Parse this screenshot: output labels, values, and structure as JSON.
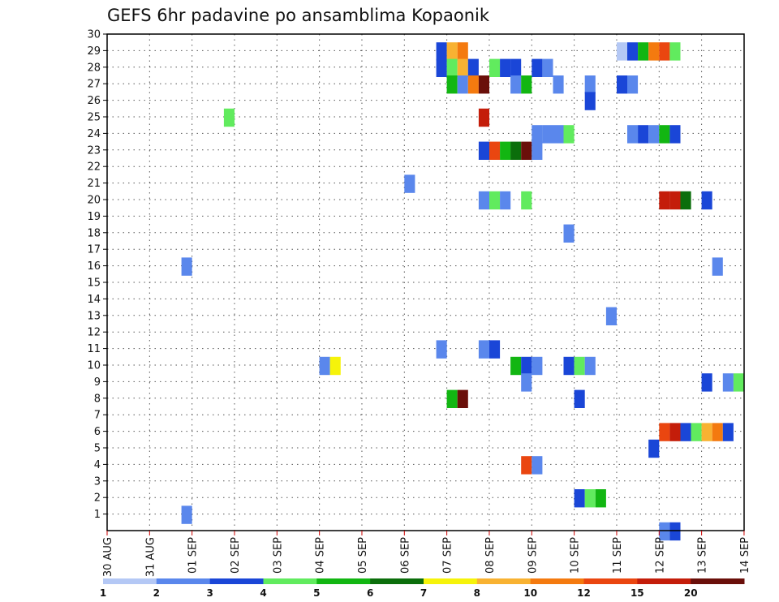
{
  "chart_data": {
    "type": "heatmap",
    "title": "GEFS 6hr padavine po ansamblima Kopaonik",
    "x_categories": [
      "30 AUG",
      "31 AUG",
      "01 SEP",
      "02 SEP",
      "03 SEP",
      "04 SEP",
      "05 SEP",
      "06 SEP",
      "07 SEP",
      "08 SEP",
      "09 SEP",
      "10 SEP",
      "11 SEP",
      "12 SEP",
      "13 SEP",
      "14 SEP"
    ],
    "x_step": "6hr",
    "y_ticks": [
      1,
      2,
      3,
      4,
      5,
      6,
      7,
      8,
      9,
      10,
      11,
      12,
      13,
      14,
      15,
      16,
      17,
      18,
      19,
      20,
      21,
      22,
      23,
      24,
      25,
      26,
      27,
      28,
      29,
      30
    ],
    "ylim": [
      0,
      30
    ],
    "grid": true,
    "legend_placement": "bottom",
    "colorbar": {
      "labels": [
        "1",
        "2",
        "3",
        "4",
        "5",
        "6",
        "7",
        "8",
        "10",
        "12",
        "15",
        "20"
      ],
      "colors": [
        "#b4c8f5",
        "#5a87ec",
        "#1a46d7",
        "#61eb5e",
        "#12b612",
        "#0b6e0b",
        "#f6f30a",
        "#f8b232",
        "#f47a0f",
        "#ea4610",
        "#c41d0a",
        "#6a0f0a"
      ]
    },
    "cells": [
      {
        "day": "07 SEP",
        "step": 3,
        "member": 29,
        "value": 3
      },
      {
        "day": "08 SEP",
        "step": 0,
        "member": 29,
        "value": 8
      },
      {
        "day": "08 SEP",
        "step": 1,
        "member": 29,
        "value": 10
      },
      {
        "day": "12 SEP",
        "step": 0,
        "member": 29,
        "value": 1
      },
      {
        "day": "12 SEP",
        "step": 1,
        "member": 29,
        "value": 3
      },
      {
        "day": "12 SEP",
        "step": 2,
        "member": 29,
        "value": 5
      },
      {
        "day": "12 SEP",
        "step": 3,
        "member": 29,
        "value": 10
      },
      {
        "day": "13 SEP",
        "step": 0,
        "member": 29,
        "value": 12
      },
      {
        "day": "13 SEP",
        "step": 1,
        "member": 29,
        "value": 4
      },
      {
        "day": "07 SEP",
        "step": 3,
        "member": 28,
        "value": 3
      },
      {
        "day": "08 SEP",
        "step": 0,
        "member": 28,
        "value": 4
      },
      {
        "day": "08 SEP",
        "step": 1,
        "member": 28,
        "value": 8
      },
      {
        "day": "08 SEP",
        "step": 2,
        "member": 28,
        "value": 3
      },
      {
        "day": "09 SEP",
        "step": 0,
        "member": 28,
        "value": 4
      },
      {
        "day": "09 SEP",
        "step": 1,
        "member": 28,
        "value": 3
      },
      {
        "day": "09 SEP",
        "step": 2,
        "member": 28,
        "value": 3
      },
      {
        "day": "10 SEP",
        "step": 0,
        "member": 28,
        "value": 3
      },
      {
        "day": "10 SEP",
        "step": 1,
        "member": 28,
        "value": 2
      },
      {
        "day": "08 SEP",
        "step": 0,
        "member": 27,
        "value": 5
      },
      {
        "day": "08 SEP",
        "step": 1,
        "member": 27,
        "value": 2
      },
      {
        "day": "08 SEP",
        "step": 2,
        "member": 27,
        "value": 10
      },
      {
        "day": "08 SEP",
        "step": 3,
        "member": 27,
        "value": 20
      },
      {
        "day": "09 SEP",
        "step": 2,
        "member": 27,
        "value": 2
      },
      {
        "day": "09 SEP",
        "step": 3,
        "member": 27,
        "value": 5
      },
      {
        "day": "10 SEP",
        "step": 2,
        "member": 27,
        "value": 2
      },
      {
        "day": "11 SEP",
        "step": 1,
        "member": 27,
        "value": 2
      },
      {
        "day": "12 SEP",
        "step": 0,
        "member": 27,
        "value": 3
      },
      {
        "day": "12 SEP",
        "step": 1,
        "member": 27,
        "value": 2
      },
      {
        "day": "11 SEP",
        "step": 1,
        "member": 26,
        "value": 3
      },
      {
        "day": "02 SEP",
        "step": 3,
        "member": 25,
        "value": 4
      },
      {
        "day": "08 SEP",
        "step": 3,
        "member": 25,
        "value": 15
      },
      {
        "day": "10 SEP",
        "step": 0,
        "member": 24,
        "value": 2
      },
      {
        "day": "10 SEP",
        "step": 1,
        "member": 24,
        "value": 2
      },
      {
        "day": "10 SEP",
        "step": 2,
        "member": 24,
        "value": 2
      },
      {
        "day": "10 SEP",
        "step": 3,
        "member": 24,
        "value": 4
      },
      {
        "day": "12 SEP",
        "step": 1,
        "member": 24,
        "value": 2
      },
      {
        "day": "12 SEP",
        "step": 2,
        "member": 24,
        "value": 3
      },
      {
        "day": "12 SEP",
        "step": 3,
        "member": 24,
        "value": 2
      },
      {
        "day": "13 SEP",
        "step": 0,
        "member": 24,
        "value": 5
      },
      {
        "day": "13 SEP",
        "step": 1,
        "member": 24,
        "value": 3
      },
      {
        "day": "08 SEP",
        "step": 3,
        "member": 23,
        "value": 3
      },
      {
        "day": "09 SEP",
        "step": 0,
        "member": 23,
        "value": 12
      },
      {
        "day": "09 SEP",
        "step": 1,
        "member": 23,
        "value": 5
      },
      {
        "day": "09 SEP",
        "step": 2,
        "member": 23,
        "value": 6
      },
      {
        "day": "09 SEP",
        "step": 3,
        "member": 23,
        "value": 20
      },
      {
        "day": "10 SEP",
        "step": 0,
        "member": 23,
        "value": 2
      },
      {
        "day": "07 SEP",
        "step": 0,
        "member": 21,
        "value": 2
      },
      {
        "day": "08 SEP",
        "step": 3,
        "member": 20,
        "value": 2
      },
      {
        "day": "09 SEP",
        "step": 0,
        "member": 20,
        "value": 4
      },
      {
        "day": "09 SEP",
        "step": 1,
        "member": 20,
        "value": 2
      },
      {
        "day": "09 SEP",
        "step": 3,
        "member": 20,
        "value": 4
      },
      {
        "day": "13 SEP",
        "step": 0,
        "member": 20,
        "value": 15
      },
      {
        "day": "13 SEP",
        "step": 1,
        "member": 20,
        "value": 15
      },
      {
        "day": "13 SEP",
        "step": 2,
        "member": 20,
        "value": 6
      },
      {
        "day": "14 SEP",
        "step": 0,
        "member": 20,
        "value": 3
      },
      {
        "day": "10 SEP",
        "step": 3,
        "member": 18,
        "value": 2
      },
      {
        "day": "14 SEP",
        "step": 1,
        "member": 16,
        "value": 2
      },
      {
        "day": "01 SEP",
        "step": 3,
        "member": 16,
        "value": 2
      },
      {
        "day": "11 SEP",
        "step": 3,
        "member": 13,
        "value": 2
      },
      {
        "day": "07 SEP",
        "step": 3,
        "member": 11,
        "value": 2
      },
      {
        "day": "08 SEP",
        "step": 3,
        "member": 11,
        "value": 2
      },
      {
        "day": "09 SEP",
        "step": 0,
        "member": 11,
        "value": 3
      },
      {
        "day": "05 SEP",
        "step": 0,
        "member": 10,
        "value": 2
      },
      {
        "day": "05 SEP",
        "step": 1,
        "member": 10,
        "value": 7
      },
      {
        "day": "09 SEP",
        "step": 2,
        "member": 10,
        "value": 5
      },
      {
        "day": "09 SEP",
        "step": 3,
        "member": 10,
        "value": 3
      },
      {
        "day": "10 SEP",
        "step": 0,
        "member": 10,
        "value": 2
      },
      {
        "day": "10 SEP",
        "step": 3,
        "member": 10,
        "value": 3
      },
      {
        "day": "11 SEP",
        "step": 0,
        "member": 10,
        "value": 4
      },
      {
        "day": "11 SEP",
        "step": 1,
        "member": 10,
        "value": 2
      },
      {
        "day": "09 SEP",
        "step": 3,
        "member": 9,
        "value": 2
      },
      {
        "day": "14 SEP",
        "step": 0,
        "member": 9,
        "value": 3
      },
      {
        "day": "14 SEP",
        "step": 2,
        "member": 9,
        "value": 2
      },
      {
        "day": "14 SEP",
        "step": 3,
        "member": 9,
        "value": 4
      },
      {
        "day": "08 SEP",
        "step": 0,
        "member": 8,
        "value": 5
      },
      {
        "day": "08 SEP",
        "step": 1,
        "member": 8,
        "value": 20
      },
      {
        "day": "11 SEP",
        "step": 0,
        "member": 8,
        "value": 3
      },
      {
        "day": "13 SEP",
        "step": 0,
        "member": 6,
        "value": 12
      },
      {
        "day": "13 SEP",
        "step": 1,
        "member": 6,
        "value": 15
      },
      {
        "day": "13 SEP",
        "step": 2,
        "member": 6,
        "value": 3
      },
      {
        "day": "13 SEP",
        "step": 3,
        "member": 6,
        "value": 4
      },
      {
        "day": "14 SEP",
        "step": 0,
        "member": 6,
        "value": 8
      },
      {
        "day": "14 SEP",
        "step": 1,
        "member": 6,
        "value": 10
      },
      {
        "day": "14 SEP",
        "step": 2,
        "member": 6,
        "value": 3
      },
      {
        "day": "12 SEP",
        "step": 3,
        "member": 5,
        "value": 3
      },
      {
        "day": "09 SEP",
        "step": 3,
        "member": 4,
        "value": 12
      },
      {
        "day": "10 SEP",
        "step": 0,
        "member": 4,
        "value": 2
      },
      {
        "day": "11 SEP",
        "step": 0,
        "member": 2,
        "value": 3
      },
      {
        "day": "11 SEP",
        "step": 1,
        "member": 2,
        "value": 4
      },
      {
        "day": "11 SEP",
        "step": 2,
        "member": 2,
        "value": 5
      },
      {
        "day": "01 SEP",
        "step": 3,
        "member": 1,
        "value": 2
      },
      {
        "day": "13 SEP",
        "step": 0,
        "member": 0,
        "value": 2
      },
      {
        "day": "13 SEP",
        "step": 1,
        "member": 0,
        "value": 3
      }
    ]
  }
}
